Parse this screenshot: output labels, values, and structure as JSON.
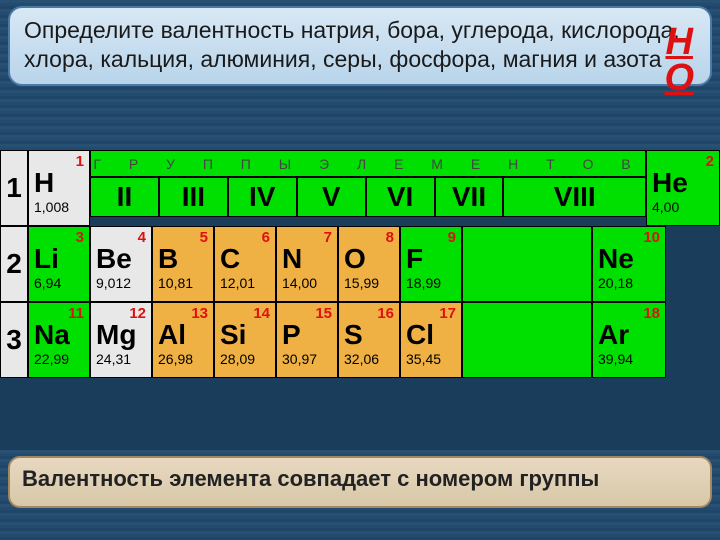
{
  "question_text": "Определите валентность натрия, бора, углерода, кислорода, хлора, кальция, алюминия, серы, фосфора, магния и азота",
  "answer_link": {
    "line1": "Н",
    "line2": "О"
  },
  "bottom_text": "Валентность элемента совпадает с номером группы",
  "groups_header_text": "Г Р У П П Ы    Э Л Е М Е Н Т О В",
  "group_labels": [
    "II",
    "III",
    "IV",
    "V",
    "VI",
    "VII",
    "VIII"
  ],
  "colors": {
    "green": "#00e000",
    "orange": "#f0b144",
    "gray": "#e8e8e8",
    "red_text": "#d11"
  },
  "periods": [
    {
      "n": "1",
      "cells": [
        {
          "z": "1",
          "sym": "H",
          "mass": "1,008",
          "bg": "gray",
          "w": "w1"
        },
        {
          "header": true
        },
        {
          "z": "2",
          "sym": "He",
          "mass": "4,00",
          "bg": "green",
          "w": "w-last"
        }
      ]
    },
    {
      "n": "2",
      "cells": [
        {
          "z": "3",
          "sym": "Li",
          "mass": "6,94",
          "bg": "green",
          "w": "w1"
        },
        {
          "z": "4",
          "sym": "Be",
          "mass": "9,012",
          "bg": "gray",
          "w": "w1"
        },
        {
          "z": "5",
          "sym": "B",
          "mass": "10,81",
          "bg": "orange",
          "w": "w1"
        },
        {
          "z": "6",
          "sym": "C",
          "mass": "12,01",
          "bg": "orange",
          "w": "w1"
        },
        {
          "z": "7",
          "sym": "N",
          "mass": "14,00",
          "bg": "orange",
          "w": "w1"
        },
        {
          "z": "8",
          "sym": "O",
          "mass": "15,99",
          "bg": "orange",
          "w": "w1"
        },
        {
          "z": "9",
          "sym": "F",
          "mass": "18,99",
          "bg": "green",
          "w": "w1"
        },
        {
          "z": "",
          "sym": "",
          "mass": "",
          "bg": "green",
          "w": "w-viii"
        },
        {
          "z": "10",
          "sym": "Ne",
          "mass": "20,18",
          "bg": "green",
          "w": "w-last"
        }
      ]
    },
    {
      "n": "3",
      "cells": [
        {
          "z": "11",
          "sym": "Na",
          "mass": "22,99",
          "bg": "green",
          "w": "w1"
        },
        {
          "z": "12",
          "sym": "Mg",
          "mass": "24,31",
          "bg": "gray",
          "w": "w1"
        },
        {
          "z": "13",
          "sym": "Al",
          "mass": "26,98",
          "bg": "orange",
          "w": "w1"
        },
        {
          "z": "14",
          "sym": "Si",
          "mass": "28,09",
          "bg": "orange",
          "w": "w1"
        },
        {
          "z": "15",
          "sym": "P",
          "mass": "30,97",
          "bg": "orange",
          "w": "w1"
        },
        {
          "z": "16",
          "sym": "S",
          "mass": "32,06",
          "bg": "orange",
          "w": "w1"
        },
        {
          "z": "17",
          "sym": "Cl",
          "mass": "35,45",
          "bg": "orange",
          "w": "w1"
        },
        {
          "z": "",
          "sym": "",
          "mass": "",
          "bg": "green",
          "w": "w-viii"
        },
        {
          "z": "18",
          "sym": "Ar",
          "mass": "39,94",
          "bg": "green",
          "w": "w-last"
        }
      ]
    }
  ]
}
